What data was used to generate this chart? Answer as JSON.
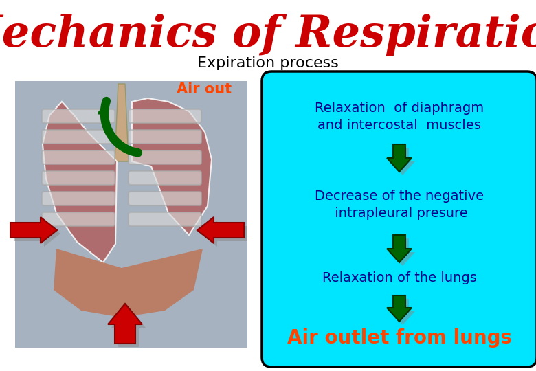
{
  "title": "Mechanics of Respiration",
  "subtitle": "Expiration process",
  "title_color": "#cc0000",
  "subtitle_color": "#000000",
  "air_out_label": "Air out",
  "air_out_color": "#ff4400",
  "box_bg_color": "#00e5ff",
  "box_border_color": "#000000",
  "box_text_color": "#00008b",
  "step1": "Relaxation  of diaphragm\nand intercostal  muscles",
  "step2": "Decrease of the negative\n intrapleural presure",
  "step3": "Relaxation of the lungs",
  "final_label": "Air outlet from lungs",
  "final_color": "#ff4400",
  "arrow_color": "#006400",
  "red_arrow_color": "#cc0000",
  "lung_bg_color": "#8899aa",
  "bg_color": "#ffffff"
}
